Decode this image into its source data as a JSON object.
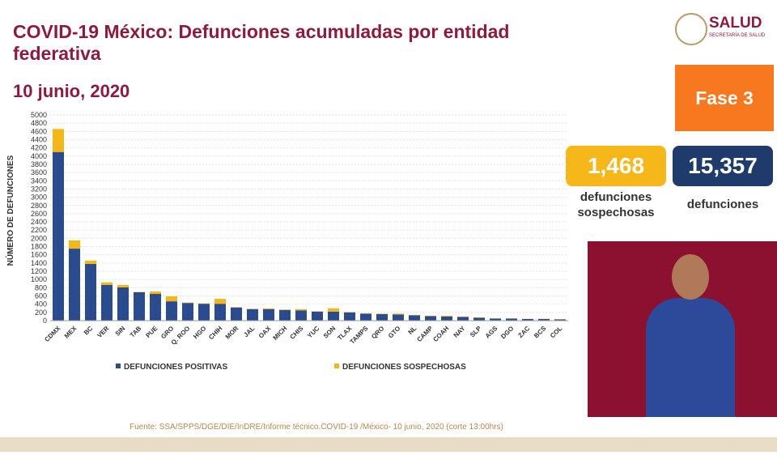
{
  "header": {
    "title": "COVID-19 México: Defunciones acumuladas por entidad federativa",
    "date": "10 junio, 2020",
    "logo": "SALUD",
    "logo_subtitle": "SECRETARÍA DE SALUD"
  },
  "phase": "Fase 3",
  "stats": [
    {
      "value": "1,468",
      "label": "defunciones sospechosas"
    },
    {
      "value": "15,357",
      "label": "defunciones"
    }
  ],
  "source": "Fuente: SSA/SPPS/DGE/DIE/InDRE/Informe técnico.COVID-19 /México- 10 junio, 2020 (corte 13:00hrs)",
  "chart_data": {
    "type": "stacked_bar",
    "ylabel": "NÚMERO DE DEFUNCIONES",
    "categories": [
      "CDMX",
      "MEX",
      "BC",
      "VER",
      "SIN",
      "TAB",
      "PUE",
      "GRO",
      "Q. ROO",
      "HGO",
      "CHIH",
      "MOR",
      "JAL",
      "OAX",
      "MICH",
      "CHIS",
      "YUC",
      "SON",
      "TLAX",
      "TAMPS",
      "QRO",
      "GTO",
      "NL",
      "CAMP",
      "COAH",
      "NAY",
      "SLP",
      "AGS",
      "DGO",
      "ZAC",
      "BCS",
      "COL"
    ],
    "series": [
      {
        "name": "DEFUNCIONES POSITIVAS",
        "color": "#2b4b8f",
        "values": [
          4100,
          1750,
          1380,
          870,
          810,
          690,
          650,
          470,
          430,
          410,
          410,
          320,
          280,
          280,
          260,
          250,
          220,
          220,
          200,
          170,
          160,
          150,
          130,
          110,
          100,
          90,
          70,
          50,
          50,
          40,
          40,
          30
        ]
      },
      {
        "name": "DEFUNCIONES SOSPECHOSAS",
        "color": "#f5b617",
        "values": [
          560,
          200,
          80,
          60,
          60,
          10,
          60,
          120,
          10,
          10,
          120,
          10,
          10,
          20,
          10,
          30,
          10,
          80,
          10,
          10,
          10,
          20,
          10,
          10,
          20,
          10,
          10,
          5,
          5,
          5,
          5,
          5
        ]
      }
    ],
    "ylim": [
      0,
      5000
    ],
    "yticks": [
      0,
      200,
      400,
      600,
      800,
      1000,
      1200,
      1400,
      1600,
      1800,
      2000,
      2200,
      2400,
      2600,
      2800,
      3000,
      3200,
      3400,
      3600,
      3800,
      4000,
      4200,
      4400,
      4600,
      4800,
      5000
    ],
    "grid": true,
    "legend": "bottom"
  }
}
